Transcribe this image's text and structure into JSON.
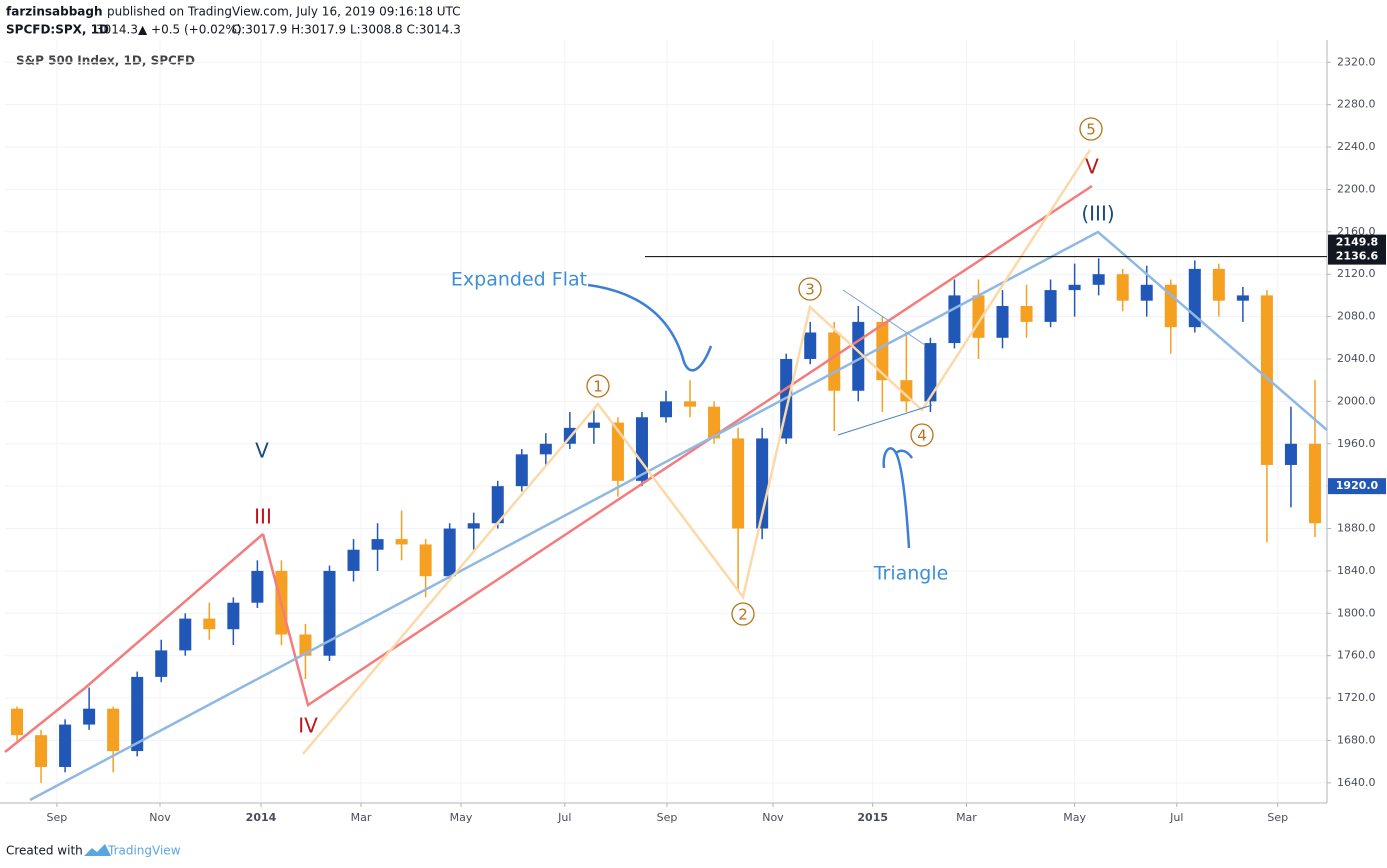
{
  "header": {
    "publisher": "farzinsabbagh",
    "published": "published on TradingView.com, July 16, 2019 09:16:18 UTC",
    "symbol": "SPCFD:SPX, 1D",
    "last": "3014.3",
    "change": "▲ +0.5 (+0.02%)",
    "quote": "O:3017.9 H:3017.9 L:3008.8 C:3014.3"
  },
  "chart_data": {
    "type": "candlestick",
    "title": "S&P 500 Index, 1D, SPCFD",
    "up_color": "#2157b7",
    "down_color": "#f5a020",
    "open": [
      1710,
      1685,
      1655,
      1695,
      1710,
      1670,
      1740,
      1765,
      1795,
      1785,
      1810,
      1840,
      1780,
      1760,
      1840,
      1860,
      1870,
      1865,
      1835,
      1880,
      1885,
      1920,
      1950,
      1960,
      1975,
      1980,
      1925,
      1985,
      2000,
      1995,
      1965,
      1880,
      1965,
      2040,
      2065,
      2010,
      2075,
      2020,
      2000,
      2055,
      2100,
      2060,
      2090,
      2075,
      2105,
      2110,
      2120,
      2095,
      2110,
      2070,
      2125,
      2095,
      2100,
      1940,
      1960
    ],
    "high": [
      1712,
      1690,
      1700,
      1730,
      1712,
      1745,
      1775,
      1800,
      1810,
      1815,
      1850,
      1850,
      1790,
      1845,
      1870,
      1885,
      1897,
      1870,
      1885,
      1895,
      1925,
      1955,
      1970,
      1990,
      1992,
      1985,
      1990,
      2010,
      2020,
      2000,
      1975,
      1975,
      2045,
      2075,
      2075,
      2090,
      2080,
      2065,
      2060,
      2115,
      2115,
      2105,
      2110,
      2115,
      2130,
      2135,
      2125,
      2128,
      2115,
      2133,
      2130,
      2108,
      2105,
      1995,
      2020
    ],
    "low": [
      1680,
      1640,
      1650,
      1690,
      1650,
      1665,
      1735,
      1760,
      1775,
      1770,
      1805,
      1770,
      1738,
      1755,
      1830,
      1840,
      1850,
      1815,
      1830,
      1860,
      1880,
      1915,
      1940,
      1955,
      1960,
      1910,
      1920,
      1980,
      1985,
      1960,
      1820,
      1870,
      1960,
      2035,
      1972,
      2000,
      1990,
      1990,
      1990,
      2050,
      2040,
      2050,
      2060,
      2070,
      2080,
      2100,
      2085,
      2080,
      2045,
      2065,
      2080,
      2075,
      1867,
      1900,
      1872
    ],
    "close": [
      1685,
      1655,
      1695,
      1710,
      1670,
      1740,
      1765,
      1795,
      1785,
      1810,
      1840,
      1780,
      1760,
      1840,
      1860,
      1870,
      1865,
      1835,
      1880,
      1885,
      1920,
      1950,
      1960,
      1975,
      1980,
      1925,
      1985,
      2000,
      1995,
      1965,
      1880,
      1965,
      2040,
      2065,
      2010,
      2075,
      2020,
      2000,
      2055,
      2100,
      2060,
      2090,
      2075,
      2105,
      2110,
      2120,
      2095,
      2110,
      2070,
      2125,
      2095,
      2100,
      1940,
      1960,
      1885
    ],
    "xlim": [
      0,
      55
    ],
    "xticks": [
      {
        "value": 2.16,
        "label": "Sep"
      },
      {
        "value": 6.45,
        "label": "Nov"
      },
      {
        "value": 10.65,
        "label": "2014"
      },
      {
        "value": 14.81,
        "label": "Mar"
      },
      {
        "value": 18.97,
        "label": "May"
      },
      {
        "value": 23.29,
        "label": "Jul"
      },
      {
        "value": 27.54,
        "label": "Sep"
      },
      {
        "value": 31.95,
        "label": "Nov"
      },
      {
        "value": 36.1,
        "label": "2015"
      },
      {
        "value": 40.0,
        "label": "Mar"
      },
      {
        "value": 44.5,
        "label": "May"
      },
      {
        "value": 48.75,
        "label": "Jul"
      },
      {
        "value": 52.95,
        "label": "Sep"
      }
    ],
    "ylim": [
      1621,
      2341
    ],
    "yticks": [
      {
        "value": 1640,
        "label": "1640.0"
      },
      {
        "value": 1680,
        "label": "1680.0"
      },
      {
        "value": 1720,
        "label": "1720.0"
      },
      {
        "value": 1760,
        "label": "1760.0"
      },
      {
        "value": 1800,
        "label": "1800.0"
      },
      {
        "value": 1840,
        "label": "1840.0"
      },
      {
        "value": 1880,
        "label": "1880.0"
      },
      {
        "value": 1920,
        "label": "1920.0"
      },
      {
        "value": 1960,
        "label": "1960.0"
      },
      {
        "value": 2000,
        "label": "2000.0"
      },
      {
        "value": 2040,
        "label": "2040.0"
      },
      {
        "value": 2080,
        "label": "2080.0"
      },
      {
        "value": 2120,
        "label": "2120.0"
      },
      {
        "value": 2160,
        "label": "2160.0"
      },
      {
        "value": 2200,
        "label": "2200.0"
      },
      {
        "value": 2240,
        "label": "2240.0"
      },
      {
        "value": 2280,
        "label": "2280.0"
      },
      {
        "value": 2320,
        "label": "2320.0"
      }
    ],
    "grid": true,
    "price_labels": [
      {
        "value": 2149.8,
        "label": "2149.8",
        "color": "#131722"
      },
      {
        "value": 2136.6,
        "label": "2136.6",
        "color": "#131722"
      },
      {
        "value": 1920.0,
        "label": "1920.0",
        "color": "#2157b7"
      }
    ],
    "hline": {
      "value": 2136.6,
      "color": "#000000"
    },
    "annotations": {
      "expanded_flat": "Expanded Flat",
      "triangle": "Triangle",
      "wave_v_blue": "V",
      "wave_iii": "III",
      "wave_iv": "IV",
      "wave_v_red": "V",
      "wave_iii_paren": "(III)",
      "circled": [
        "1",
        "2",
        "3",
        "4",
        "5"
      ]
    }
  },
  "footer": {
    "created": "Created with",
    "brand": "TradingView"
  }
}
